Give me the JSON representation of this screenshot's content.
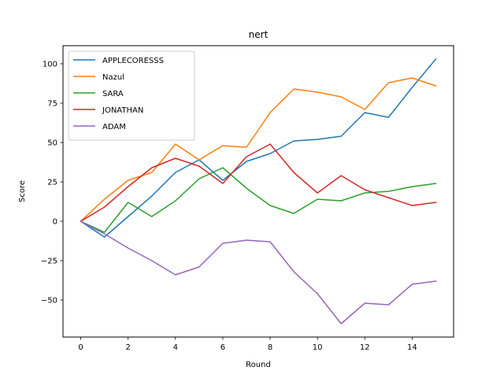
{
  "chart_data": {
    "type": "line",
    "title": "nert",
    "xlabel": "Round",
    "ylabel": "Score",
    "xlim": [
      -0.75,
      15.75
    ],
    "ylim": [
      -73.5,
      111.5
    ],
    "xticks": [
      0,
      2,
      4,
      6,
      8,
      10,
      12,
      14
    ],
    "yticks": [
      -50,
      -25,
      0,
      25,
      50,
      75,
      100
    ],
    "grid": false,
    "legend_position": "upper left",
    "x": [
      0,
      1,
      2,
      3,
      4,
      5,
      6,
      7,
      8,
      9,
      10,
      11,
      12,
      13,
      14,
      15
    ],
    "series": [
      {
        "name": "APPLECORESSS",
        "color": "#1f77b4",
        "values": [
          0,
          -10,
          3,
          16,
          31,
          39,
          26,
          38,
          43,
          51,
          52,
          54,
          69,
          66,
          85,
          103
        ]
      },
      {
        "name": "Nazul",
        "color": "#ff7f0e",
        "values": [
          0,
          14,
          26,
          31,
          49,
          39,
          48,
          47,
          69,
          84,
          82,
          79,
          71,
          88,
          91,
          86
        ]
      },
      {
        "name": "SARA",
        "color": "#2ca02c",
        "values": [
          0,
          -7,
          12,
          3,
          13,
          27,
          34,
          21,
          10,
          5,
          14,
          13,
          18,
          19,
          22,
          24
        ]
      },
      {
        "name": "JONATHAN",
        "color": "#d62728",
        "values": [
          0,
          9,
          22,
          34,
          40,
          35,
          24,
          41,
          49,
          31,
          18,
          29,
          20,
          15,
          10,
          12
        ]
      },
      {
        "name": "ADAM",
        "color": "#9467bd",
        "values": [
          0,
          -8,
          -17,
          -25,
          -34,
          -29,
          -14,
          -12,
          -13,
          -32,
          -46,
          -65,
          -52,
          -53,
          -40,
          -38
        ]
      }
    ]
  }
}
